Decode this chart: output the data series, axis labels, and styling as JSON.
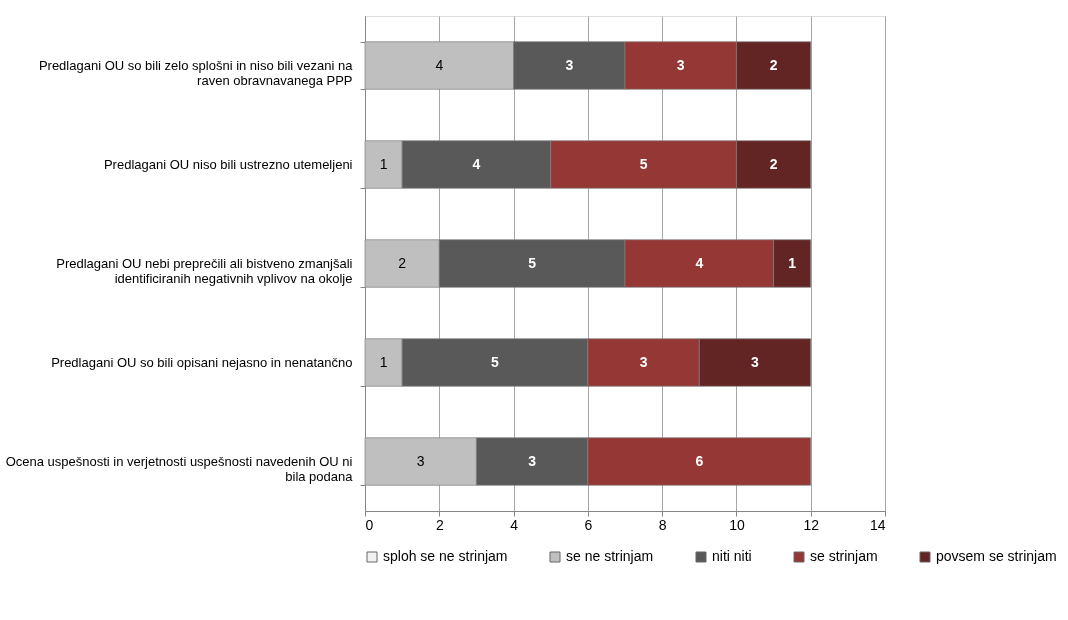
{
  "chart_data": {
    "type": "bar",
    "orientation": "horizontal",
    "stacked": true,
    "data_labels": true,
    "categories": [
      "Predlagani OU so bili zelo splošni in niso bili vezani na raven obravnavanega PPP",
      "Predlagani OU niso bili ustrezno utemeljeni",
      "Predlagani OU nebi preprečili ali bistveno zmanjšali identificiranih negativnih vplivov na okolje",
      "Predlagani OU so bili opisani nejasno in nenatančno",
      "Ocena uspešnosti in verjetnosti uspešnosti navedenih OU ni bila podana"
    ],
    "series": [
      {
        "name": "sploh se ne strinjam",
        "color": "#f2f2f2",
        "values": [
          null,
          null,
          null,
          null,
          null
        ]
      },
      {
        "name": "se ne strinjam",
        "color": "#bfbfbf",
        "values": [
          4,
          1,
          2,
          1,
          3
        ]
      },
      {
        "name": "niti niti",
        "color": "#595959",
        "values": [
          3,
          4,
          5,
          5,
          3
        ]
      },
      {
        "name": "se strinjam",
        "color": "#953735",
        "values": [
          3,
          5,
          4,
          3,
          6
        ]
      },
      {
        "name": "povsem se strinjam",
        "color": "#632523",
        "values": [
          2,
          2,
          1,
          3,
          null
        ]
      }
    ],
    "xlim": [
      0,
      14
    ],
    "xticks": [
      0,
      2,
      4,
      6,
      8,
      10,
      12,
      14
    ],
    "grid": "x",
    "legend": "bottom"
  }
}
